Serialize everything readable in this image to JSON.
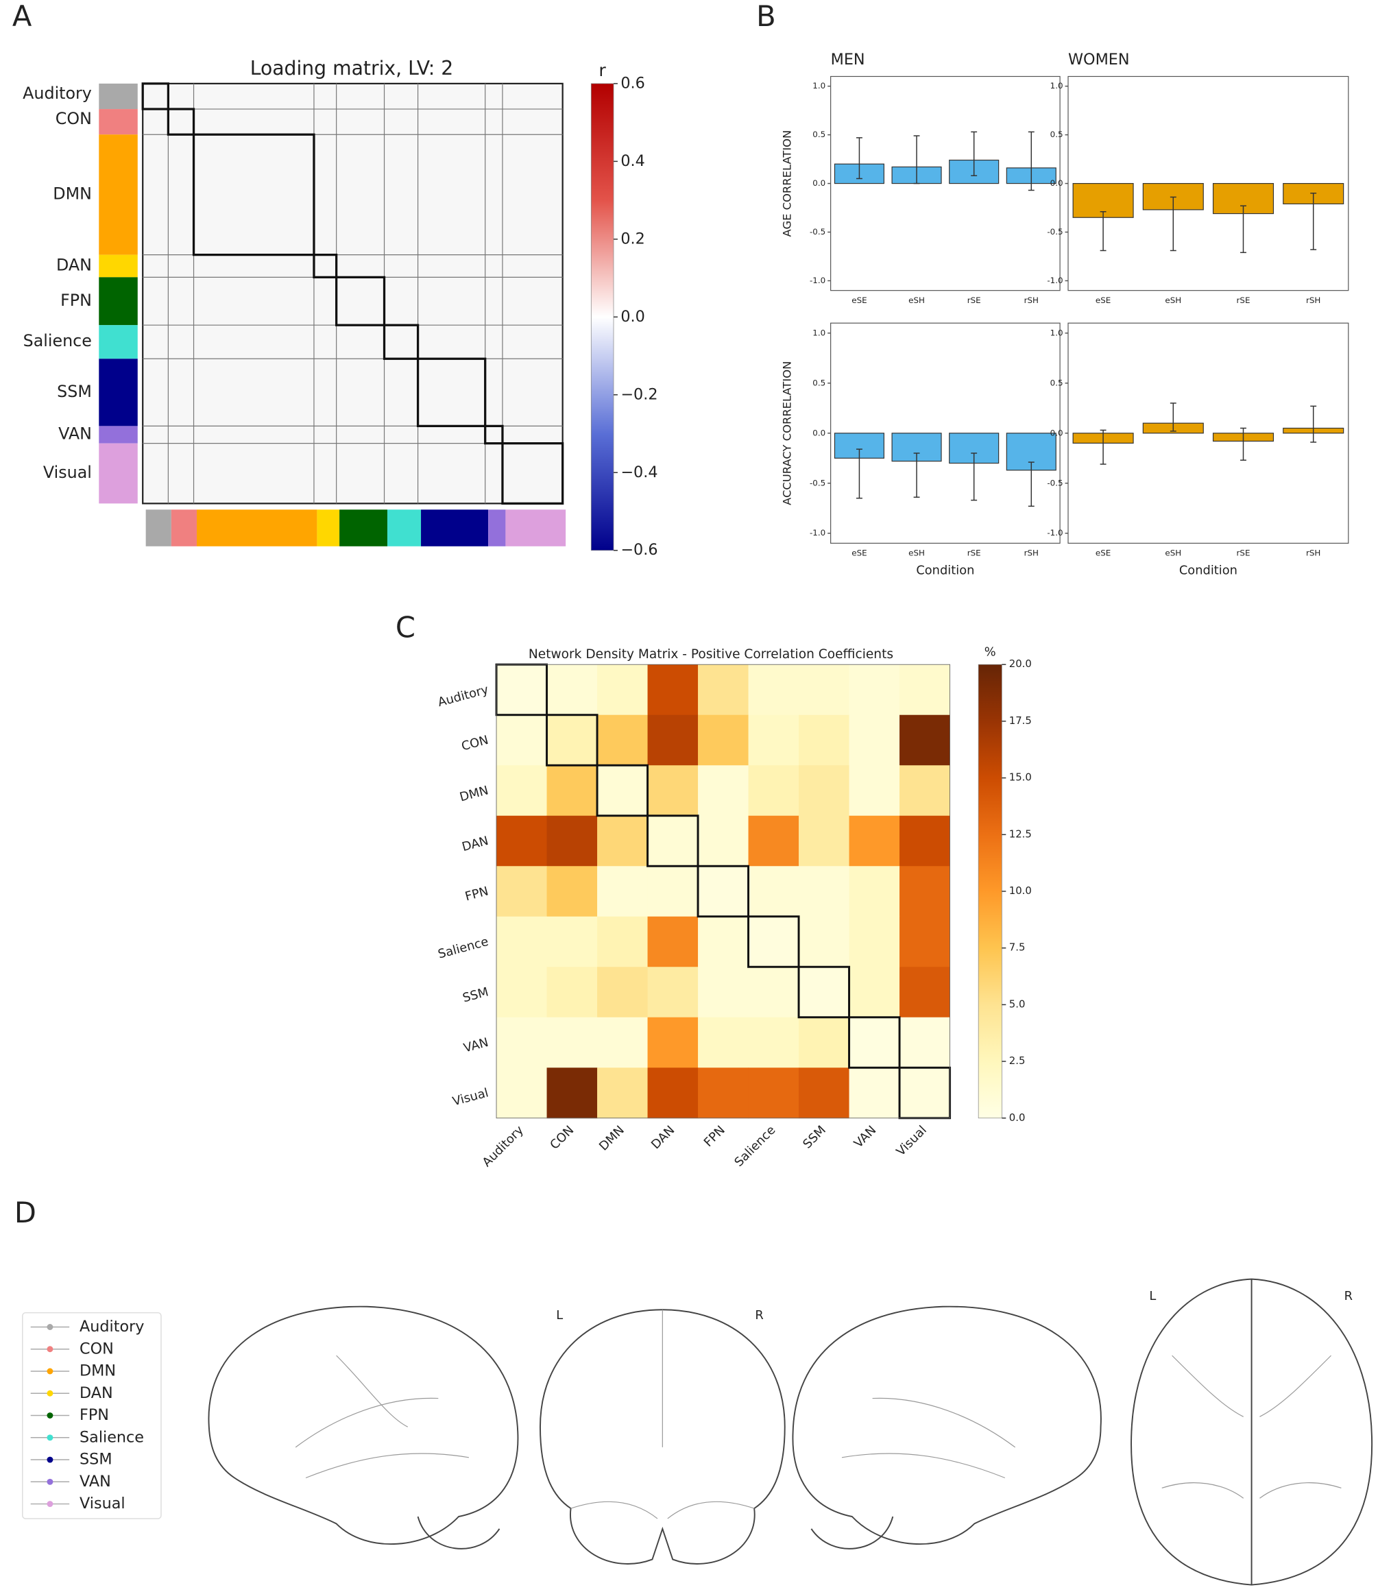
{
  "panel_labels": [
    "A",
    "B",
    "C",
    "D"
  ],
  "chart_data": [
    {
      "type": "loading_matrix",
      "title": "Loading matrix, LV:  2",
      "networks": [
        "Auditory",
        "CON",
        "DMN",
        "DAN",
        "FPN",
        "Salience",
        "SSM",
        "VAN",
        "Visual"
      ],
      "colors": [
        "#a9a9a9",
        "#f08080",
        "#ffa500",
        "#ffd700",
        "#006400",
        "#40e0d0",
        "#00008b",
        "#9370db",
        "#dda0dd"
      ],
      "colorbar_label": "r",
      "colormap": [
        "#00008b",
        "#5a6fd6",
        "#ffffff",
        "#e3534a",
        "#b20000"
      ],
      "clim": [
        -0.6,
        0.6
      ],
      "cticks": [
        0.6,
        0.4,
        0.2,
        {
          "value": 0,
          "label": "0.0"
        },
        {
          "value": -0.2,
          "label": "−0.2"
        },
        {
          "value": -0.4,
          "label": "−0.4"
        },
        {
          "value": -0.6,
          "label": "−0.6"
        }
      ]
    },
    {
      "type": "bar",
      "title": "MEN",
      "ylabel": "AGE CORRELATION",
      "color": "#56b4e9",
      "categories": [
        "eSE",
        "eSH",
        "rSE",
        "rSH"
      ],
      "values": [
        0.2,
        0.17,
        0.24,
        0.16
      ],
      "ci": [
        [
          0.05,
          0.47
        ],
        [
          0,
          0.49
        ],
        [
          0.08,
          0.53
        ],
        [
          -0.07,
          0.53
        ]
      ],
      "ylim": [
        -1.1,
        1.1
      ],
      "yticks": [
        {
          "value": 1,
          "label": "1.0"
        },
        0.5,
        {
          "value": 0,
          "label": "0.0"
        },
        -0.5,
        {
          "value": -1,
          "label": "-1.0"
        }
      ]
    },
    {
      "type": "bar",
      "title": "WOMEN",
      "color": "#e69f00",
      "categories": [
        "eSE",
        "eSH",
        "rSE",
        "rSH"
      ],
      "values": [
        -0.35,
        -0.27,
        -0.31,
        -0.21
      ],
      "ci": [
        [
          -0.69,
          -0.29
        ],
        [
          -0.69,
          -0.14
        ],
        [
          -0.71,
          -0.23
        ],
        [
          -0.68,
          -0.1
        ]
      ],
      "ylim": [
        -1.1,
        1.1
      ],
      "yticks": [
        {
          "value": 1,
          "label": "1.0"
        },
        0.5,
        {
          "value": 0,
          "label": "0.0"
        },
        -0.5,
        {
          "value": -1,
          "label": "-1.0"
        }
      ]
    },
    {
      "type": "bar",
      "ylabel": "ACCURACY CORRELATION",
      "xlabel": "Condition",
      "color": "#56b4e9",
      "categories": [
        "eSE",
        "eSH",
        "rSE",
        "rSH"
      ],
      "values": [
        -0.25,
        -0.28,
        -0.3,
        -0.37
      ],
      "ci": [
        [
          -0.65,
          -0.16
        ],
        [
          -0.64,
          -0.2
        ],
        [
          -0.67,
          -0.2
        ],
        [
          -0.73,
          -0.29
        ]
      ],
      "ylim": [
        -1.1,
        1.1
      ],
      "yticks": [
        {
          "value": 1,
          "label": "1.0"
        },
        0.5,
        {
          "value": 0,
          "label": "0.0"
        },
        -0.5,
        {
          "value": -1,
          "label": "-1.0"
        }
      ]
    },
    {
      "type": "bar",
      "xlabel": "Condition",
      "color": "#e69f00",
      "categories": [
        "eSE",
        "eSH",
        "rSE",
        "rSH"
      ],
      "values": [
        -0.1,
        0.1,
        -0.08,
        0.05
      ],
      "ci": [
        [
          -0.31,
          0.03
        ],
        [
          0.02,
          0.3
        ],
        [
          -0.27,
          0.05
        ],
        [
          -0.09,
          0.27
        ]
      ],
      "ylim": [
        -1.1,
        1.1
      ],
      "yticks": [
        {
          "value": 1,
          "label": "1.0"
        },
        0.5,
        {
          "value": 0,
          "label": "0.0"
        },
        -0.5,
        {
          "value": -1,
          "label": "-1.0"
        }
      ]
    },
    {
      "type": "heatmap",
      "title": "Network Density Matrix - Positive Correlation Coefficients",
      "x_labels": [
        "Auditory",
        "CON",
        "DMN",
        "DAN",
        "FPN",
        "Salience",
        "SSM",
        "VAN",
        "Visual"
      ],
      "y_labels": [
        "Auditory",
        "CON",
        "DMN",
        "DAN",
        "FPN",
        "Salience",
        "SSM",
        "VAN",
        "Visual"
      ],
      "values": [
        [
          0.5,
          1,
          2,
          15,
          5,
          1.5,
          1.5,
          1,
          1.5
        ],
        [
          1,
          3,
          7,
          16,
          7,
          2,
          3,
          1,
          19
        ],
        [
          2,
          7,
          1,
          6,
          1,
          3,
          4,
          1,
          5
        ],
        [
          15,
          16,
          6,
          1,
          1,
          11,
          4,
          10,
          15
        ],
        [
          5,
          7,
          1,
          1,
          0.5,
          1,
          1,
          2,
          13
        ],
        [
          2,
          2,
          3,
          11,
          1,
          0.5,
          1,
          2,
          13
        ],
        [
          2,
          3,
          5,
          4,
          1,
          1,
          0.5,
          2,
          14
        ],
        [
          1,
          1,
          1,
          10,
          2,
          2,
          3,
          0.3,
          0.5
        ],
        [
          1,
          19,
          5,
          15,
          13,
          13,
          14,
          0.5,
          0.5
        ]
      ],
      "colorbar_label": "%",
      "colormap": [
        "#ffffe5",
        "#fff7bc",
        "#fee391",
        "#fec44f",
        "#fe9929",
        "#ec7014",
        "#cc4c02",
        "#993404",
        "#662506"
      ],
      "clim": [
        0,
        20
      ],
      "cticks": [
        {
          "value": 0,
          "label": "0.0"
        },
        2.5,
        {
          "value": 5,
          "label": "5.0"
        },
        7.5,
        {
          "value": 10,
          "label": "10.0"
        },
        12.5,
        {
          "value": 15,
          "label": "15.0"
        },
        17.5,
        {
          "value": 20,
          "label": "20.0"
        }
      ]
    }
  ],
  "legend": {
    "items": [
      {
        "name": "Auditory",
        "color": "#a9a9a9"
      },
      {
        "name": "CON",
        "color": "#f08080"
      },
      {
        "name": "DMN",
        "color": "#ffa500"
      },
      {
        "name": "DAN",
        "color": "#ffd700"
      },
      {
        "name": "FPN",
        "color": "#006400"
      },
      {
        "name": "Salience",
        "color": "#40e0d0"
      },
      {
        "name": "SSM",
        "color": "#00008b"
      },
      {
        "name": "VAN",
        "color": "#9370db"
      },
      {
        "name": "Visual",
        "color": "#dda0dd"
      }
    ]
  },
  "brain_labels": [
    "L",
    "R",
    "L",
    "R"
  ]
}
